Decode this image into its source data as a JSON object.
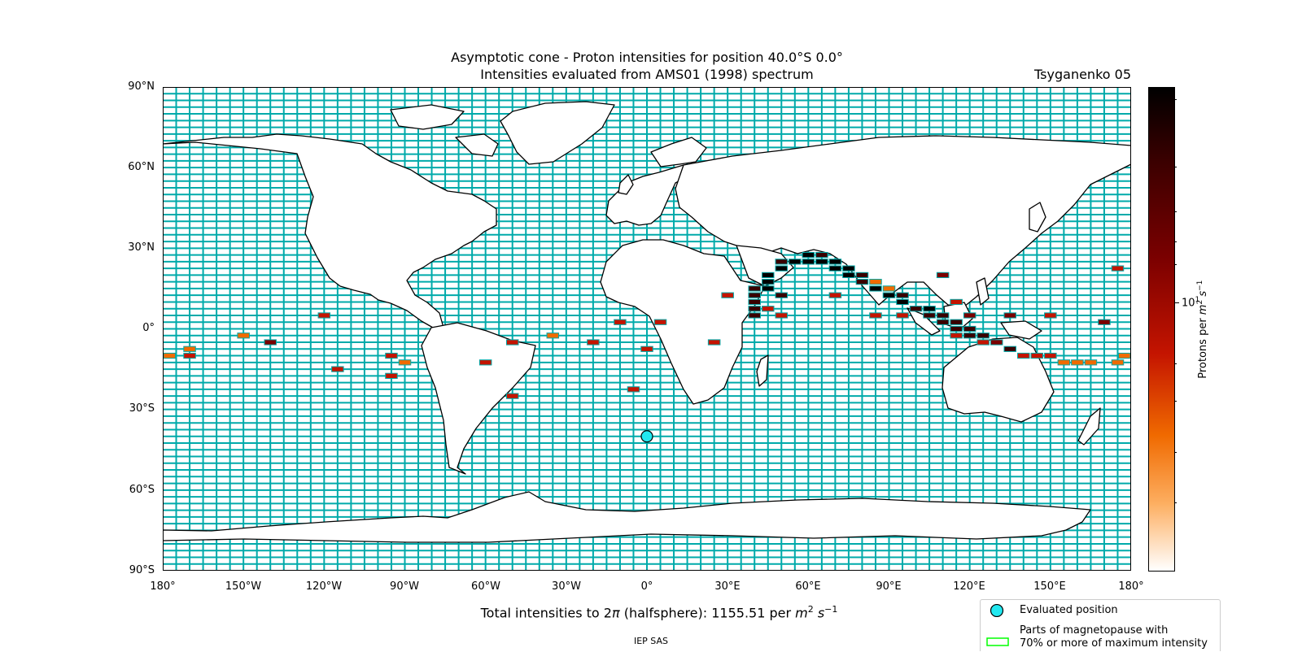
{
  "title": {
    "line1": "Asymptotic cone - Proton intensities for position 40.0°S 0.0°",
    "line2": "Intensities evaluated from AMS01 (1998) spectrum",
    "model": "Tsyganenko 05"
  },
  "map": {
    "latitude_labels": [
      "90°N",
      "60°N",
      "30°N",
      "0°",
      "30°S",
      "60°S",
      "90°S"
    ],
    "longitude_labels": [
      "180°",
      "150°W",
      "120°W",
      "90°W",
      "60°W",
      "30°W",
      "0°",
      "30°E",
      "60°E",
      "90°E",
      "120°E",
      "150°E",
      "180°"
    ],
    "grid_lon_step_deg": 5,
    "grid_lat_step_deg": 2.5,
    "colors": {
      "ocean_grid": "#00aaaa",
      "land": "#ffffff",
      "coast": "#000000",
      "evaluated_marker": "#22e8f0"
    },
    "evaluated_position": {
      "lat": -40.0,
      "lon": 0.0
    },
    "cells": [
      {
        "lon": -180,
        "lat": -10,
        "level": 2
      },
      {
        "lon": -170,
        "lat": -7.5,
        "level": 2
      },
      {
        "lon": -170,
        "lat": -10,
        "level": 3
      },
      {
        "lon": -150,
        "lat": -2.5,
        "level": 2
      },
      {
        "lon": -140,
        "lat": -5,
        "level": 4
      },
      {
        "lon": -120,
        "lat": 5,
        "level": 3
      },
      {
        "lon": -115,
        "lat": -15,
        "level": 3
      },
      {
        "lon": -95,
        "lat": -10,
        "level": 3
      },
      {
        "lon": -95,
        "lat": -17.5,
        "level": 3
      },
      {
        "lon": -90,
        "lat": -12.5,
        "level": 2
      },
      {
        "lon": -60,
        "lat": -12.5,
        "level": 3
      },
      {
        "lon": -50,
        "lat": -25,
        "level": 3
      },
      {
        "lon": -50,
        "lat": -5,
        "level": 3
      },
      {
        "lon": -35,
        "lat": -2.5,
        "level": 2
      },
      {
        "lon": -20,
        "lat": -5,
        "level": 3
      },
      {
        "lon": -10,
        "lat": 2.5,
        "level": 3
      },
      {
        "lon": -5,
        "lat": -22.5,
        "level": 3
      },
      {
        "lon": 0,
        "lat": -7.5,
        "level": 3
      },
      {
        "lon": 5,
        "lat": 2.5,
        "level": 3
      },
      {
        "lon": 25,
        "lat": -5,
        "level": 3
      },
      {
        "lon": 30,
        "lat": 12.5,
        "level": 3
      },
      {
        "lon": 40,
        "lat": 5,
        "level": 5
      },
      {
        "lon": 40,
        "lat": 7.5,
        "level": 5
      },
      {
        "lon": 40,
        "lat": 10,
        "level": 5
      },
      {
        "lon": 40,
        "lat": 12.5,
        "level": 5
      },
      {
        "lon": 40,
        "lat": 15,
        "level": 5
      },
      {
        "lon": 45,
        "lat": 7.5,
        "level": 3
      },
      {
        "lon": 45,
        "lat": 15,
        "level": 6
      },
      {
        "lon": 45,
        "lat": 17.5,
        "level": 6
      },
      {
        "lon": 45,
        "lat": 20,
        "level": 6
      },
      {
        "lon": 50,
        "lat": 5,
        "level": 3
      },
      {
        "lon": 50,
        "lat": 12.5,
        "level": 5
      },
      {
        "lon": 50,
        "lat": 22.5,
        "level": 6
      },
      {
        "lon": 50,
        "lat": 25,
        "level": 5
      },
      {
        "lon": 55,
        "lat": 25,
        "level": 6
      },
      {
        "lon": 60,
        "lat": 25,
        "level": 6
      },
      {
        "lon": 60,
        "lat": 27.5,
        "level": 6
      },
      {
        "lon": 65,
        "lat": 25,
        "level": 6
      },
      {
        "lon": 65,
        "lat": 27.5,
        "level": 5
      },
      {
        "lon": 70,
        "lat": 12.5,
        "level": 3
      },
      {
        "lon": 70,
        "lat": 22.5,
        "level": 6
      },
      {
        "lon": 70,
        "lat": 25,
        "level": 6
      },
      {
        "lon": 75,
        "lat": 20,
        "level": 6
      },
      {
        "lon": 75,
        "lat": 22.5,
        "level": 6
      },
      {
        "lon": 80,
        "lat": 17.5,
        "level": 5
      },
      {
        "lon": 80,
        "lat": 20,
        "level": 5
      },
      {
        "lon": 85,
        "lat": 5,
        "level": 3
      },
      {
        "lon": 85,
        "lat": 15,
        "level": 6
      },
      {
        "lon": 85,
        "lat": 17.5,
        "level": 2
      },
      {
        "lon": 90,
        "lat": 12.5,
        "level": 6
      },
      {
        "lon": 90,
        "lat": 15,
        "level": 2
      },
      {
        "lon": 95,
        "lat": 5,
        "level": 3
      },
      {
        "lon": 95,
        "lat": 10,
        "level": 6
      },
      {
        "lon": 95,
        "lat": 12.5,
        "level": 5
      },
      {
        "lon": 100,
        "lat": 7.5,
        "level": 5
      },
      {
        "lon": 105,
        "lat": 5,
        "level": 5
      },
      {
        "lon": 105,
        "lat": 7.5,
        "level": 6
      },
      {
        "lon": 110,
        "lat": 2.5,
        "level": 5
      },
      {
        "lon": 110,
        "lat": 5,
        "level": 5
      },
      {
        "lon": 110,
        "lat": 20,
        "level": 4
      },
      {
        "lon": 115,
        "lat": -2.5,
        "level": 3
      },
      {
        "lon": 115,
        "lat": 0,
        "level": 5
      },
      {
        "lon": 115,
        "lat": 2.5,
        "level": 5
      },
      {
        "lon": 115,
        "lat": 10,
        "level": 3
      },
      {
        "lon": 120,
        "lat": -2.5,
        "level": 5
      },
      {
        "lon": 120,
        "lat": 0,
        "level": 5
      },
      {
        "lon": 120,
        "lat": 5,
        "level": 4
      },
      {
        "lon": 125,
        "lat": -5,
        "level": 3
      },
      {
        "lon": 125,
        "lat": -2.5,
        "level": 5
      },
      {
        "lon": 130,
        "lat": -5,
        "level": 4
      },
      {
        "lon": 135,
        "lat": -7.5,
        "level": 5
      },
      {
        "lon": 135,
        "lat": 5,
        "level": 4
      },
      {
        "lon": 140,
        "lat": -10,
        "level": 3
      },
      {
        "lon": 145,
        "lat": -10,
        "level": 3
      },
      {
        "lon": 150,
        "lat": -10,
        "level": 3
      },
      {
        "lon": 150,
        "lat": 5,
        "level": 3
      },
      {
        "lon": 155,
        "lat": -12.5,
        "level": 2
      },
      {
        "lon": 160,
        "lat": -12.5,
        "level": 2
      },
      {
        "lon": 165,
        "lat": -12.5,
        "level": 2
      },
      {
        "lon": 170,
        "lat": 2.5,
        "level": 4
      },
      {
        "lon": 175,
        "lat": -12.5,
        "level": 2
      },
      {
        "lon": 175,
        "lat": 22.5,
        "level": 3
      },
      {
        "lon": 180,
        "lat": -10,
        "level": 2
      }
    ]
  },
  "colorbar": {
    "major_label": "10",
    "major_exp": "1",
    "axis_label_prefix": "Protons per ",
    "stops": [
      "#ffffff",
      "#fdae60",
      "#f06a00",
      "#c41400",
      "#7a0000",
      "#3a0000",
      "#000000"
    ]
  },
  "total": {
    "prefix": "Total intensities to 2",
    "pi": "π",
    "mid": " (halfsphere): 1155.51 per ",
    "unit_m": "m",
    "unit_exp": "2",
    "unit_s": " s",
    "unit_sexp": "−1"
  },
  "legend": {
    "evaluated_label": "Evaluated position",
    "magnetopause_label_line1": "Parts of magnetopause with",
    "magnetopause_label_line2": "70% or more of maximum intensity",
    "magnetopause_color": "#00ff00"
  },
  "footer": {
    "text": "IEP SAS"
  }
}
